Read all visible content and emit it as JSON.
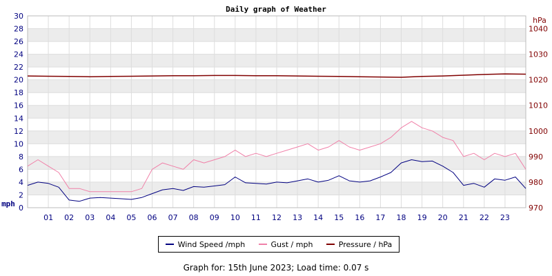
{
  "chart_data": {
    "type": "line",
    "title": "Daily graph of Weather",
    "ylabel_left": "mph",
    "ylabel_right": "hPa",
    "ylim_left": [
      0,
      30
    ],
    "ylim_right": [
      970,
      1045
    ],
    "yticks_left": [
      0,
      2,
      4,
      6,
      8,
      10,
      12,
      14,
      16,
      18,
      20,
      22,
      24,
      26,
      28,
      30
    ],
    "yticks_right": [
      970,
      980,
      990,
      1000,
      1010,
      1020,
      1030,
      1040
    ],
    "xticks": [
      "01",
      "02",
      "03",
      "04",
      "05",
      "06",
      "07",
      "08",
      "09",
      "10",
      "11",
      "12",
      "13",
      "14",
      "15",
      "16",
      "17",
      "18",
      "19",
      "20",
      "21",
      "22",
      "23"
    ],
    "xlim_hours": [
      0,
      24
    ],
    "grid": true,
    "legend_position": "bottom",
    "series": [
      {
        "name": "Wind Speed /mph",
        "axis": "left",
        "color": "#000080",
        "x": [
          0,
          0.5,
          1,
          1.5,
          2,
          2.5,
          3,
          3.5,
          4,
          4.5,
          5,
          5.5,
          6,
          6.5,
          7,
          7.5,
          8,
          8.5,
          9,
          9.5,
          10,
          10.5,
          11,
          11.5,
          12,
          12.5,
          13,
          13.5,
          14,
          14.5,
          15,
          15.5,
          16,
          16.5,
          17,
          17.5,
          18,
          18.5,
          19,
          19.5,
          20,
          20.5,
          21,
          21.5,
          22,
          22.5,
          23,
          23.5,
          24
        ],
        "y": [
          3.5,
          4.0,
          3.8,
          3.2,
          1.2,
          1.0,
          1.5,
          1.6,
          1.5,
          1.4,
          1.3,
          1.6,
          2.2,
          2.8,
          3.0,
          2.7,
          3.3,
          3.2,
          3.4,
          3.6,
          4.8,
          3.9,
          3.8,
          3.7,
          4.0,
          3.9,
          4.2,
          4.5,
          4.0,
          4.3,
          5.0,
          4.2,
          4.0,
          4.2,
          4.8,
          5.5,
          7.0,
          7.5,
          7.2,
          7.3,
          6.5,
          5.5,
          3.5,
          3.8,
          3.2,
          4.5,
          4.3,
          4.8,
          3.0
        ]
      },
      {
        "name": "Gust / mph",
        "axis": "left",
        "color": "#f080a8",
        "x": [
          0,
          0.5,
          1,
          1.5,
          2,
          2.5,
          3,
          3.5,
          4,
          4.5,
          5,
          5.5,
          6,
          6.5,
          7,
          7.5,
          8,
          8.5,
          9,
          9.5,
          10,
          10.5,
          11,
          11.5,
          12,
          12.5,
          13,
          13.5,
          14,
          14.5,
          15,
          15.5,
          16,
          16.5,
          17,
          17.5,
          18,
          18.5,
          19,
          19.5,
          20,
          20.5,
          21,
          21.5,
          22,
          22.5,
          23,
          23.5,
          24
        ],
        "y": [
          6.5,
          7.5,
          6.5,
          5.5,
          3.0,
          3.0,
          2.5,
          2.5,
          2.5,
          2.5,
          2.5,
          3.0,
          6.0,
          7.0,
          6.5,
          6.0,
          7.5,
          7.0,
          7.5,
          8.0,
          9.0,
          8.0,
          8.5,
          8.0,
          8.5,
          9.0,
          9.5,
          10.0,
          9.0,
          9.5,
          10.5,
          9.5,
          9.0,
          9.5,
          10.0,
          11.0,
          12.5,
          13.5,
          12.5,
          12.0,
          11.0,
          10.5,
          8.0,
          8.5,
          7.5,
          8.5,
          8.0,
          8.5,
          6.0
        ]
      },
      {
        "name": "Pressure / hPa",
        "axis": "right",
        "color": "#800000",
        "x": [
          0,
          1,
          2,
          3,
          4,
          5,
          6,
          7,
          8,
          9,
          10,
          11,
          12,
          13,
          14,
          15,
          16,
          17,
          18,
          19,
          20,
          21,
          22,
          23,
          24
        ],
        "y": [
          1021.5,
          1021.4,
          1021.3,
          1021.2,
          1021.3,
          1021.4,
          1021.5,
          1021.6,
          1021.6,
          1021.7,
          1021.7,
          1021.6,
          1021.6,
          1021.5,
          1021.4,
          1021.3,
          1021.2,
          1021.1,
          1021.0,
          1021.3,
          1021.5,
          1021.8,
          1022.1,
          1022.3,
          1022.2
        ]
      }
    ]
  },
  "footer": {
    "text": "Graph for: 15th June 2023; Load time: 0.07 s"
  }
}
